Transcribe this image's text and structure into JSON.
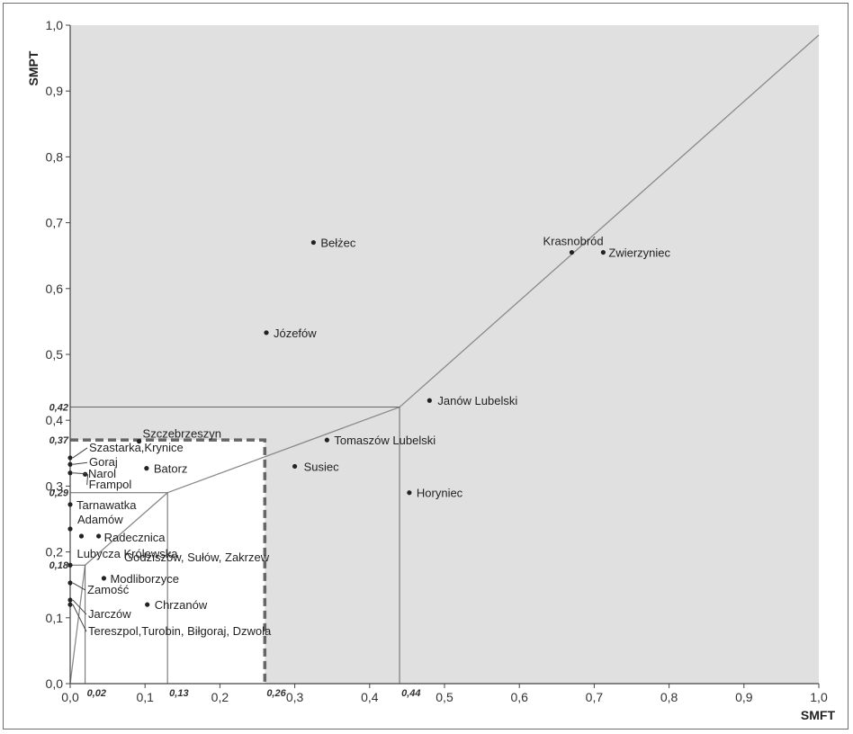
{
  "chart_data": {
    "type": "scatter",
    "xlabel": "SMFT",
    "ylabel": "SMPT",
    "xlim": [
      0,
      1
    ],
    "ylim": [
      0,
      1
    ],
    "x_ticks": [
      "0,0",
      "0,1",
      "0,2",
      "0,3",
      "0,4",
      "0,5",
      "0,6",
      "0,7",
      "0,8",
      "0,9",
      "1,0"
    ],
    "y_ticks": [
      "0,0",
      "0,1",
      "0,2",
      "0,3",
      "0,4",
      "0,5",
      "0,6",
      "0,7",
      "0,8",
      "0,9",
      "1,0"
    ],
    "threshold_labels_x": [
      {
        "value": 0.02,
        "label": "0,02"
      },
      {
        "value": 0.13,
        "label": "0,13"
      },
      {
        "value": 0.26,
        "label": "0,26"
      },
      {
        "value": 0.44,
        "label": "0,44"
      }
    ],
    "threshold_labels_y": [
      {
        "value": 0.18,
        "label": "0,18"
      },
      {
        "value": 0.29,
        "label": "0,29"
      },
      {
        "value": 0.37,
        "label": "0,37"
      },
      {
        "value": 0.42,
        "label": "0,42"
      }
    ],
    "boundary_line": [
      [
        0,
        0
      ],
      [
        0.02,
        0.18
      ],
      [
        0.13,
        0.29
      ],
      [
        0.44,
        0.42
      ],
      [
        1.0,
        0.985
      ]
    ],
    "shaded_region_color": "#e0e0e0",
    "points": [
      {
        "name": "Bełżec",
        "x": 0.325,
        "y": 0.67
      },
      {
        "name": "Krasnobród",
        "x": 0.67,
        "y": 0.655
      },
      {
        "name": "Zwierzyniec",
        "x": 0.712,
        "y": 0.655
      },
      {
        "name": "Józefów",
        "x": 0.262,
        "y": 0.533
      },
      {
        "name": "Janów Lubelski",
        "x": 0.48,
        "y": 0.43
      },
      {
        "name": "Tomaszów Lubelski",
        "x": 0.343,
        "y": 0.37
      },
      {
        "name": "Szczebrzeszyn",
        "x": 0.092,
        "y": 0.368
      },
      {
        "name": "Susiec",
        "x": 0.3,
        "y": 0.33
      },
      {
        "name": "Batorz",
        "x": 0.102,
        "y": 0.327
      },
      {
        "name": "Horyniec",
        "x": 0.453,
        "y": 0.29
      },
      {
        "name": "Szastarka,Krynice",
        "x": 0.0,
        "y": 0.343
      },
      {
        "name": "Goraj",
        "x": 0.0,
        "y": 0.333
      },
      {
        "name": "Narol",
        "x": 0.0,
        "y": 0.32
      },
      {
        "name": "Frampol",
        "x": 0.02,
        "y": 0.318
      },
      {
        "name": "Tarnawatka",
        "x": 0.0,
        "y": 0.272
      },
      {
        "name": "Adamów",
        "x": 0.0,
        "y": 0.235
      },
      {
        "name": "Radecznica",
        "x": 0.038,
        "y": 0.224
      },
      {
        "name": "Lubycza Królewska",
        "x": 0.015,
        "y": 0.224
      },
      {
        "name": "Godziszów, Sułów, Zakrzew",
        "x": 0.0,
        "y": 0.18
      },
      {
        "name": "Modliborzyce",
        "x": 0.045,
        "y": 0.16
      },
      {
        "name": "Zamość",
        "x": 0.0,
        "y": 0.153
      },
      {
        "name": "Chrzanów",
        "x": 0.103,
        "y": 0.12
      },
      {
        "name": "Jarczów",
        "x": 0.0,
        "y": 0.127
      },
      {
        "name": "Tereszpol,Turobin, Biłgoraj, Dzwola",
        "x": 0.0,
        "y": 0.12
      }
    ]
  }
}
